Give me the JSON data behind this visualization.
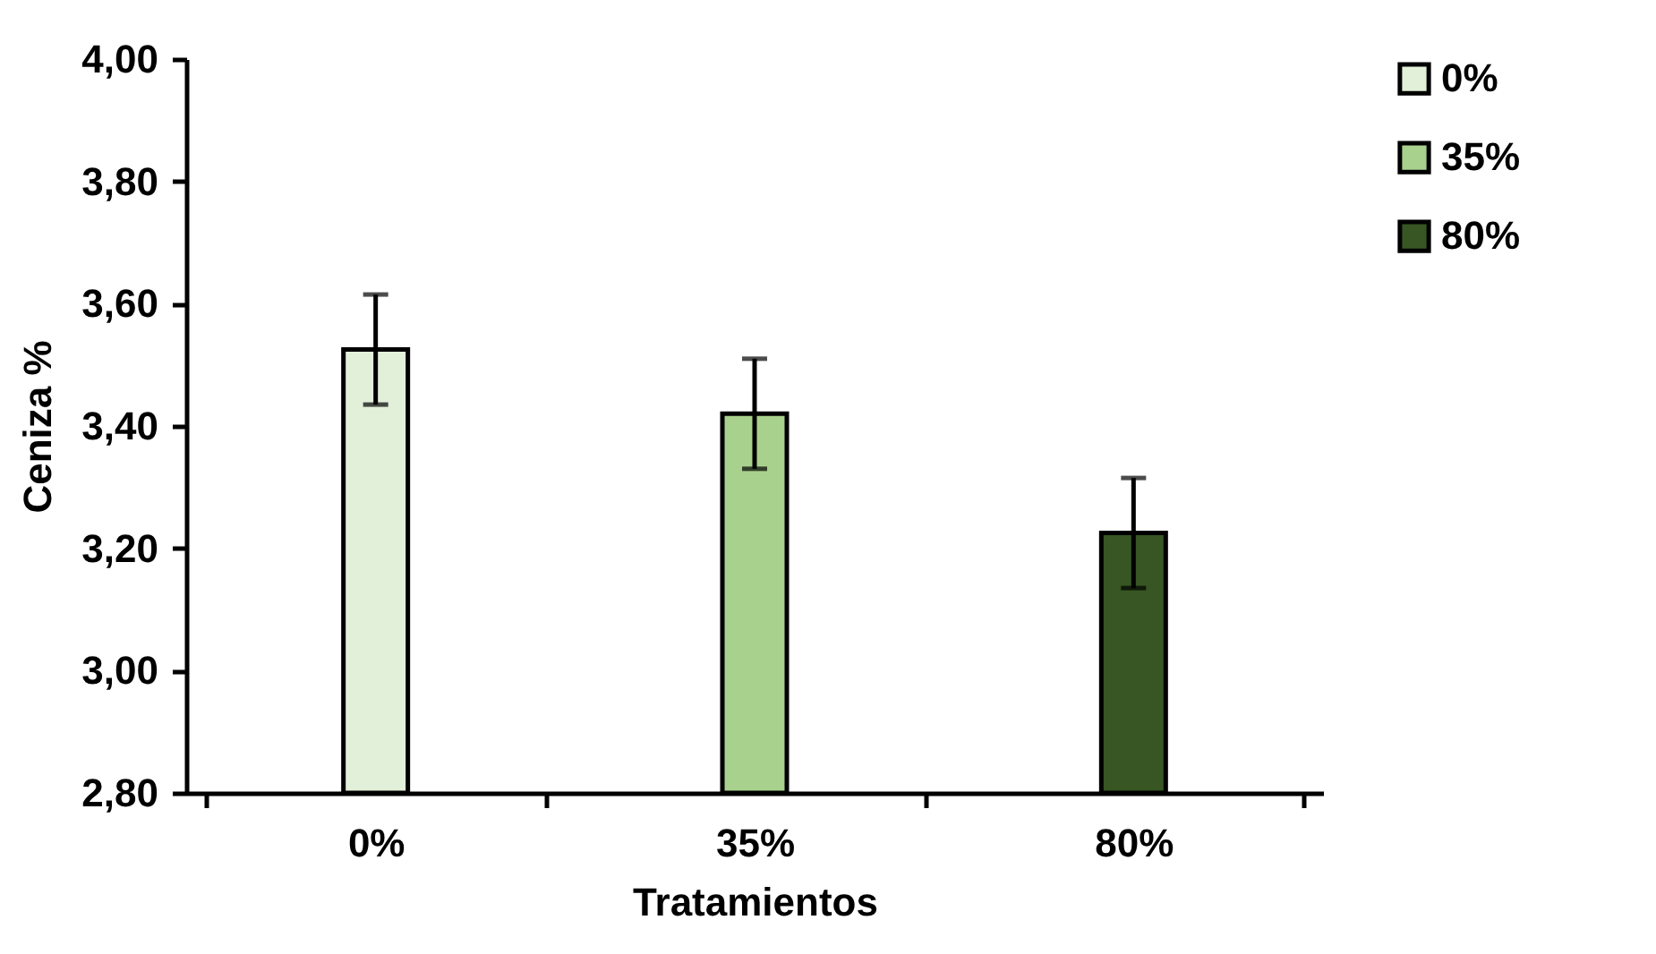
{
  "chart_data": {
    "type": "bar",
    "xlabel": "Tratamientos",
    "ylabel": "Ceniza %",
    "categories": [
      "0%",
      "35%",
      "80%"
    ],
    "series": [
      {
        "name": "0%",
        "color": "#e2efd9",
        "values": [
          3.525,
          null,
          null
        ],
        "errors": [
          0.09,
          null,
          null
        ]
      },
      {
        "name": "35%",
        "color": "#a9d18e",
        "values": [
          null,
          3.42,
          null
        ],
        "errors": [
          null,
          0.09,
          null
        ]
      },
      {
        "name": "80%",
        "color": "#375623",
        "values": [
          null,
          null,
          3.225
        ],
        "errors": [
          null,
          null,
          0.09
        ]
      }
    ],
    "ylim": [
      2.8,
      4.0
    ],
    "yticks": [
      {
        "value": 2.8,
        "label": "2,80"
      },
      {
        "value": 3.0,
        "label": "3,00"
      },
      {
        "value": 3.2,
        "label": "3,20"
      },
      {
        "value": 3.4,
        "label": "3,40"
      },
      {
        "value": 3.6,
        "label": "3,60"
      },
      {
        "value": 3.8,
        "label": "3,80"
      },
      {
        "value": 4.0,
        "label": "4,00"
      }
    ],
    "grid": false,
    "legend": "top right"
  }
}
